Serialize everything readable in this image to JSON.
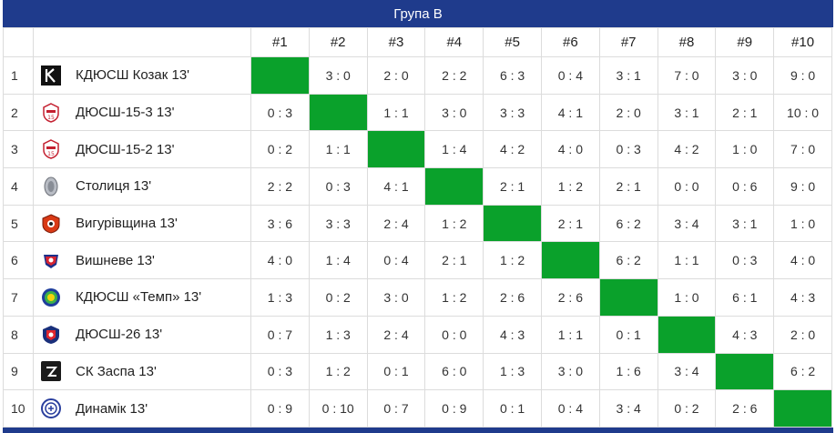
{
  "title": "Група B",
  "columns": [
    "#1",
    "#2",
    "#3",
    "#4",
    "#5",
    "#6",
    "#7",
    "#8",
    "#9",
    "#10"
  ],
  "rows": [
    {
      "num": "1",
      "team": "КДЮСШ Козак 13'",
      "logo": "kozak-logo-icon",
      "results": [
        "",
        "3 : 0",
        "2 : 0",
        "2 : 2",
        "6 : 3",
        "0 : 4",
        "3 : 1",
        "7 : 0",
        "3 : 0",
        "9 : 0"
      ]
    },
    {
      "num": "2",
      "team": "ДЮСШ-15-3 13'",
      "logo": "dyussh15-logo-icon",
      "results": [
        "0 : 3",
        "",
        "1 : 1",
        "3 : 0",
        "3 : 3",
        "4 : 1",
        "2 : 0",
        "3 : 1",
        "2 : 1",
        "10 : 0"
      ]
    },
    {
      "num": "3",
      "team": "ДЮСШ-15-2 13'",
      "logo": "dyussh15-logo-icon",
      "results": [
        "0 : 2",
        "1 : 1",
        "",
        "1 : 4",
        "4 : 2",
        "4 : 0",
        "0 : 3",
        "4 : 2",
        "1 : 0",
        "7 : 0"
      ]
    },
    {
      "num": "4",
      "team": "Столиця 13'",
      "logo": "stolytsia-logo-icon",
      "results": [
        "2 : 2",
        "0 : 3",
        "4 : 1",
        "",
        "2 : 1",
        "1 : 2",
        "2 : 1",
        "0 : 0",
        "0 : 6",
        "9 : 0"
      ]
    },
    {
      "num": "5",
      "team": "Вигурівщина 13'",
      "logo": "vyhurivshchyna-logo-icon",
      "results": [
        "3 : 6",
        "3 : 3",
        "2 : 4",
        "1 : 2",
        "",
        "2 : 1",
        "6 : 2",
        "3 : 4",
        "3 : 1",
        "1 : 0"
      ]
    },
    {
      "num": "6",
      "team": "Вишневе 13'",
      "logo": "vyshneve-logo-icon",
      "results": [
        "4 : 0",
        "1 : 4",
        "0 : 4",
        "2 : 1",
        "1 : 2",
        "",
        "6 : 2",
        "1 : 1",
        "0 : 3",
        "4 : 0"
      ]
    },
    {
      "num": "7",
      "team": "КДЮСШ «Темп» 13'",
      "logo": "temp-logo-icon",
      "results": [
        "1 : 3",
        "0 : 2",
        "3 : 0",
        "1 : 2",
        "2 : 6",
        "2 : 6",
        "",
        "1 : 0",
        "6 : 1",
        "4 : 3"
      ]
    },
    {
      "num": "8",
      "team": "ДЮСШ-26 13'",
      "logo": "dyussh26-logo-icon",
      "results": [
        "0 : 7",
        "1 : 3",
        "2 : 4",
        "0 : 0",
        "4 : 3",
        "1 : 1",
        "0 : 1",
        "",
        "4 : 3",
        "2 : 0"
      ]
    },
    {
      "num": "9",
      "team": "СК Заспа 13'",
      "logo": "zaspa-logo-icon",
      "results": [
        "0 : 3",
        "1 : 2",
        "0 : 1",
        "6 : 0",
        "1 : 3",
        "3 : 0",
        "1 : 6",
        "3 : 4",
        "",
        "6 : 2"
      ]
    },
    {
      "num": "10",
      "team": "Динамік 13'",
      "logo": "dynamik-logo-icon",
      "results": [
        "0 : 9",
        "0 : 10",
        "0 : 7",
        "0 : 9",
        "0 : 1",
        "0 : 4",
        "3 : 4",
        "0 : 2",
        "2 : 6",
        ""
      ]
    }
  ],
  "colors": {
    "header": "#1f3b8c",
    "self_cell": "#0aa12b",
    "grid": "#dcdcdc"
  }
}
